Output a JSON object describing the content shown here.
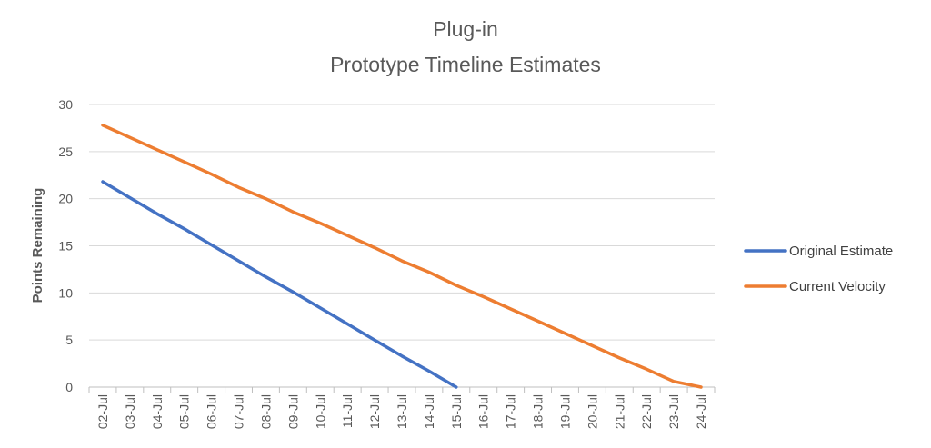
{
  "chart_data": {
    "type": "line",
    "title_lines": [
      "Plug-in",
      "Prototype Timeline Estimates"
    ],
    "xlabel": "",
    "ylabel": "Points Remaining",
    "ylim": [
      0,
      30
    ],
    "yticks": [
      "0",
      "5",
      "10",
      "15",
      "20",
      "25",
      "30"
    ],
    "grid": true,
    "legend_position": "right",
    "categories": [
      "02-Jul",
      "03-Jul",
      "04-Jul",
      "05-Jul",
      "06-Jul",
      "07-Jul",
      "08-Jul",
      "09-Jul",
      "10-Jul",
      "11-Jul",
      "12-Jul",
      "13-Jul",
      "14-Jul",
      "15-Jul",
      "16-Jul",
      "17-Jul",
      "18-Jul",
      "19-Jul",
      "20-Jul",
      "21-Jul",
      "22-Jul",
      "23-Jul",
      "24-Jul"
    ],
    "series": [
      {
        "name": "Original Estimate",
        "color": "#4472C4",
        "values": [
          21.8,
          20.1,
          18.4,
          16.8,
          15.1,
          13.4,
          11.7,
          10.1,
          8.4,
          6.7,
          5.0,
          3.3,
          1.7,
          0,
          null,
          null,
          null,
          null,
          null,
          null,
          null,
          null,
          null
        ]
      },
      {
        "name": "Current Velocity",
        "color": "#ED7D31",
        "values": [
          27.8,
          26.5,
          25.2,
          23.9,
          22.6,
          21.2,
          20.0,
          18.6,
          17.4,
          16.1,
          14.8,
          13.4,
          12.2,
          10.8,
          9.6,
          8.3,
          7.0,
          5.7,
          4.4,
          3.1,
          1.9,
          0.6,
          0
        ]
      }
    ]
  }
}
